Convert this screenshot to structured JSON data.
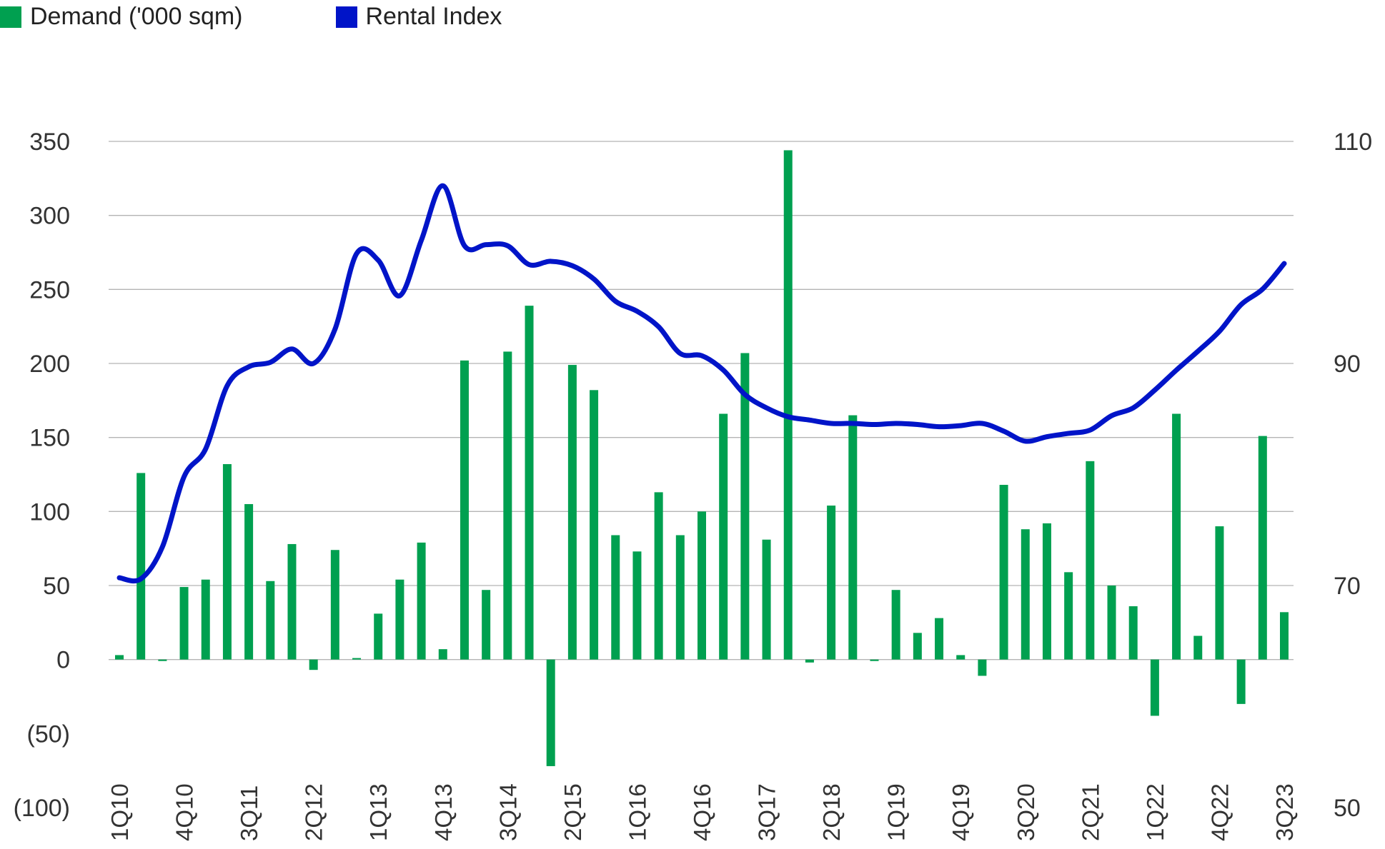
{
  "chart_data": {
    "type": "bar",
    "legend": [
      {
        "label": "Demand ('000 sqm)",
        "color": "#00a050",
        "marker": "square"
      },
      {
        "label": "Rental Index",
        "color": "#0014c8",
        "marker": "square"
      }
    ],
    "legend_position": "top-left",
    "grid": true,
    "left_axis": {
      "ylim": [
        -100,
        350
      ],
      "ticks": [
        350,
        300,
        250,
        200,
        150,
        100,
        50,
        0,
        -50,
        -100
      ],
      "tick_labels": [
        "350",
        "300",
        "250",
        "200",
        "150",
        "100",
        "50",
        "0",
        "(50)",
        "(100)"
      ]
    },
    "right_axis": {
      "ylim": [
        50,
        110
      ],
      "ticks": [
        110,
        90,
        70,
        50
      ],
      "tick_labels": [
        "110",
        "90",
        "70",
        "50"
      ]
    },
    "x_tick_labels": [
      "1Q10",
      "4Q10",
      "3Q11",
      "2Q12",
      "1Q13",
      "4Q13",
      "3Q14",
      "2Q15",
      "1Q16",
      "4Q16",
      "3Q17",
      "2Q18",
      "1Q19",
      "4Q19",
      "3Q20",
      "2Q21",
      "1Q22",
      "4Q22",
      "3Q23"
    ],
    "categories": [
      "1Q10",
      "2Q10",
      "3Q10",
      "4Q10",
      "1Q11",
      "2Q11",
      "3Q11",
      "4Q11",
      "1Q12",
      "2Q12",
      "3Q12",
      "4Q12",
      "1Q13",
      "2Q13",
      "3Q13",
      "4Q13",
      "1Q14",
      "2Q14",
      "3Q14",
      "4Q14",
      "1Q15",
      "2Q15",
      "3Q15",
      "4Q15",
      "1Q16",
      "2Q16",
      "3Q16",
      "4Q16",
      "1Q17",
      "2Q17",
      "3Q17",
      "4Q17",
      "1Q18",
      "2Q18",
      "3Q18",
      "4Q18",
      "1Q19",
      "2Q19",
      "3Q19",
      "4Q19",
      "1Q20",
      "2Q20",
      "3Q20",
      "4Q20",
      "1Q21",
      "2Q21",
      "3Q21",
      "4Q21",
      "1Q22",
      "2Q22",
      "3Q22",
      "4Q22",
      "1Q23",
      "2Q23",
      "3Q23"
    ],
    "series": [
      {
        "name": "Demand ('000 sqm)",
        "type": "bar",
        "axis": "left",
        "color": "#00a050",
        "values": [
          3,
          126,
          -1,
          49,
          54,
          132,
          105,
          53,
          78,
          -7,
          74,
          1,
          31,
          54,
          79,
          7,
          202,
          47,
          208,
          239,
          -72,
          199,
          182,
          84,
          73,
          113,
          84,
          100,
          166,
          207,
          81,
          344,
          -2,
          104,
          165,
          -1,
          47,
          18,
          28,
          3,
          -11,
          118,
          88,
          92,
          59,
          134,
          50,
          36,
          -38,
          166,
          16,
          90,
          -30,
          151,
          32
        ]
      },
      {
        "name": "Rental Index",
        "type": "line",
        "axis": "right",
        "color": "#0014c8",
        "values": [
          70.7,
          70.6,
          73.5,
          79.8,
          82.3,
          88.0,
          89.7,
          90.1,
          91.3,
          90.0,
          93.1,
          99.9,
          99.3,
          96.1,
          101.1,
          106.0,
          100.6,
          100.7,
          100.6,
          98.9,
          99.2,
          98.8,
          97.6,
          95.6,
          94.7,
          93.3,
          90.9,
          90.7,
          89.4,
          87.2,
          86.0,
          85.2,
          84.9,
          84.6,
          84.6,
          84.5,
          84.6,
          84.5,
          84.3,
          84.4,
          84.6,
          83.9,
          83.0,
          83.4,
          83.7,
          84.0,
          85.3,
          86.0,
          87.6,
          89.4,
          91.1,
          92.9,
          95.3,
          96.7,
          99.0
        ]
      }
    ]
  }
}
